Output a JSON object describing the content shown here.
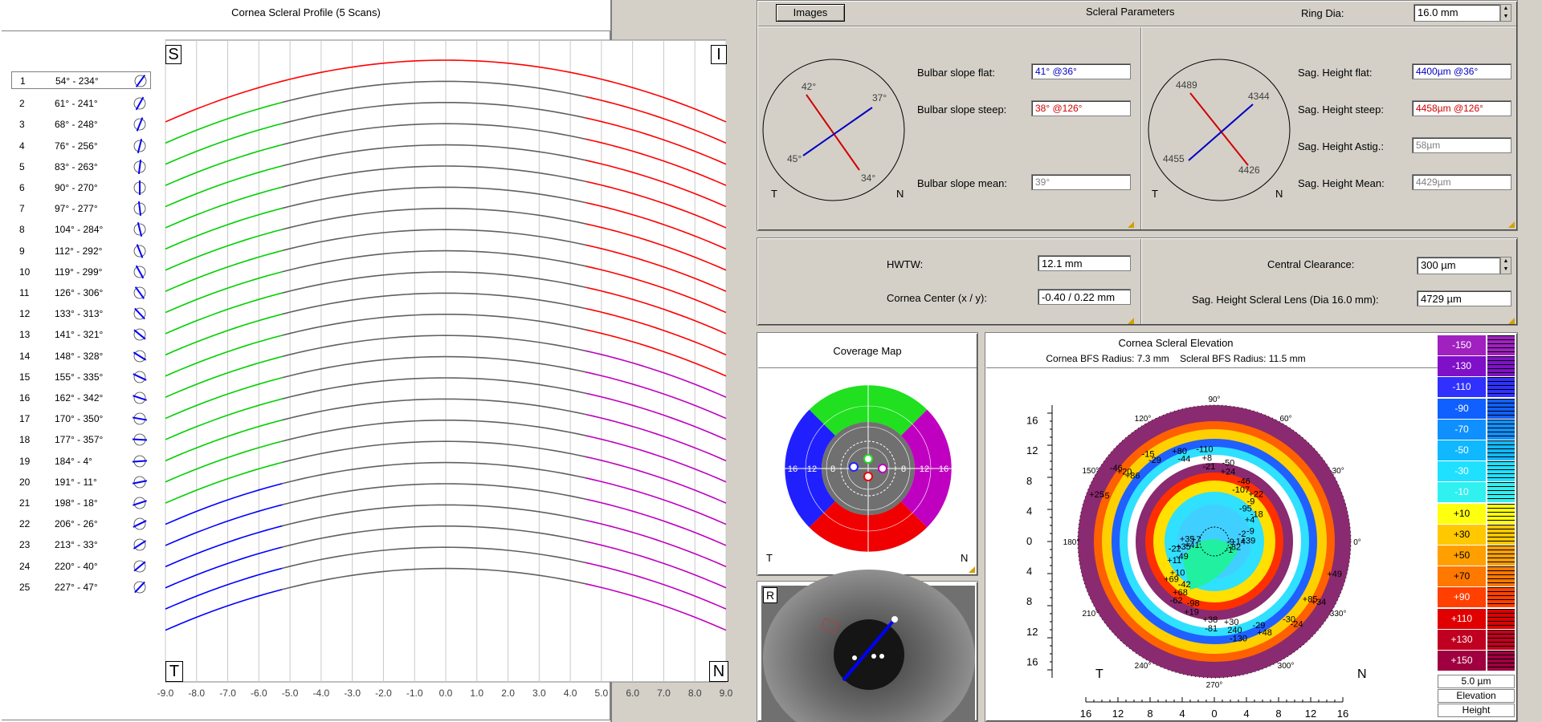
{
  "profile": {
    "title": "Cornea Scleral Profile (5 Scans)",
    "corner_s": "S",
    "corner_i": "I",
    "corner_t": "T",
    "corner_n": "N",
    "xticks": [
      "-9.0",
      "-8.0",
      "-7.0",
      "-6.0",
      "-5.0",
      "-4.0",
      "-3.0",
      "-2.0",
      "-1.0",
      "0.0",
      "1.0",
      "2.0",
      "3.0",
      "4.0",
      "5.0",
      "6.0",
      "7.0",
      "8.0",
      "9.0"
    ],
    "scans": [
      {
        "n": "1",
        "range": "54° - 234°"
      },
      {
        "n": "2",
        "range": "61° - 241°"
      },
      {
        "n": "3",
        "range": "68° - 248°"
      },
      {
        "n": "4",
        "range": "76° - 256°"
      },
      {
        "n": "5",
        "range": "83° - 263°"
      },
      {
        "n": "6",
        "range": "90° - 270°"
      },
      {
        "n": "7",
        "range": "97° - 277°"
      },
      {
        "n": "8",
        "range": "104° - 284°"
      },
      {
        "n": "9",
        "range": "112° - 292°"
      },
      {
        "n": "10",
        "range": "119° - 299°"
      },
      {
        "n": "11",
        "range": "126° - 306°"
      },
      {
        "n": "12",
        "range": "133° - 313°"
      },
      {
        "n": "13",
        "range": "141° - 321°"
      },
      {
        "n": "14",
        "range": "148° - 328°"
      },
      {
        "n": "15",
        "range": "155° - 335°"
      },
      {
        "n": "16",
        "range": "162° - 342°"
      },
      {
        "n": "17",
        "range": "170° - 350°"
      },
      {
        "n": "18",
        "range": "177° - 357°"
      },
      {
        "n": "19",
        "range": "184° - 4°"
      },
      {
        "n": "20",
        "range": "191° - 11°"
      },
      {
        "n": "21",
        "range": "198° - 18°"
      },
      {
        "n": "22",
        "range": "206° - 26°"
      },
      {
        "n": "23",
        "range": "213° - 33°"
      },
      {
        "n": "24",
        "range": "220° - 40°"
      },
      {
        "n": "25",
        "range": "227° - 47°"
      }
    ]
  },
  "scleral": {
    "images_button": "Images",
    "title": "Scleral Parameters",
    "ring_dia_label": "Ring Dia:",
    "ring_dia_value": "16.0 mm",
    "bulbar_flat_label": "Bulbar slope flat:",
    "bulbar_flat_value": "41° @36°",
    "bulbar_steep_label": "Bulbar slope steep:",
    "bulbar_steep_value": "38° @126°",
    "bulbar_mean_label": "Bulbar slope mean:",
    "bulbar_mean_value": "39°",
    "sag_flat_label": "Sag. Height flat:",
    "sag_flat_value": "4400µm @36°",
    "sag_steep_label": "Sag. Height steep:",
    "sag_steep_value": "4458µm @126°",
    "sag_astig_label": "Sag. Height Astig.:",
    "sag_astig_value": "58µm",
    "sag_mean_label": "Sag. Height Mean:",
    "sag_mean_value": "4429µm",
    "slope_diagram": {
      "a1": "42°",
      "a2": "37°",
      "a3": "45°",
      "a4": "34°",
      "t": "T",
      "n": "N"
    },
    "sag_diagram": {
      "a1": "4489",
      "a2": "4344",
      "a3": "4455",
      "a4": "4426",
      "t": "T",
      "n": "N"
    }
  },
  "lens": {
    "hwtw_label": "HWTW:",
    "hwtw_value": "12.1 mm",
    "center_label": "Cornea Center (x / y):",
    "center_value": "-0.40 / 0.22 mm",
    "clearance_label": "Central Clearance:",
    "clearance_value": "300 µm",
    "sag_lens_label": "Sag. Height Scleral Lens  (Dia 16.0 mm):",
    "sag_lens_value": "4729 µm"
  },
  "coverage": {
    "title": "Coverage Map",
    "t": "T",
    "n": "N",
    "rings": [
      "16",
      "12",
      "8",
      "4",
      "4",
      "8",
      "12",
      "16"
    ]
  },
  "eye": {
    "label": "R"
  },
  "elevation": {
    "title": "Cornea Scleral Elevation",
    "subtitle": "Cornea BFS Radius: 7.3 mm    Scleral BFS Radius: 11.5 mm",
    "yticks": [
      "16",
      "12",
      "8",
      "4",
      "0",
      "4",
      "8",
      "12",
      "16"
    ],
    "xticks": [
      "16",
      "12",
      "8",
      "4",
      "0",
      "4",
      "8",
      "12",
      "16"
    ],
    "t": "T",
    "n": "N",
    "deg": [
      "90°",
      "60°",
      "30°",
      "0°",
      "330°",
      "300°",
      "270°",
      "240°",
      "210°",
      "180°",
      "150°",
      "120°"
    ],
    "values": [
      "-9",
      "-95",
      "-21",
      "+86",
      "+41",
      "-42",
      "+30",
      "+85",
      "-2",
      "-107",
      "-44",
      "-5",
      "-49",
      "-98",
      "-29",
      "+49",
      "+4",
      "+24",
      "-29",
      "+7",
      "+10",
      "+38",
      "-30",
      "-14",
      "-9",
      "+8",
      "+20",
      "+35",
      "+68",
      "240",
      "+34",
      "-9",
      "-46",
      "+80",
      "+25",
      "+11",
      "+19",
      "+48",
      "-82",
      "-18",
      "-50",
      "-15",
      "+35",
      "+69",
      "-81",
      "-24",
      "+39",
      "+22",
      "-110",
      "-46",
      "-22",
      "-62",
      "-130",
      "-1"
    ],
    "legend": [
      "-150",
      "-130",
      "-110",
      "-90",
      "-70",
      "-50",
      "-30",
      "-10",
      "+10",
      "+30",
      "+50",
      "+70",
      "+90",
      "+110",
      "+130",
      "+150"
    ],
    "legend_colors": [
      "#a020c0",
      "#8010c8",
      "#3030ff",
      "#1060ff",
      "#1090ff",
      "#10b8ff",
      "#20e0ff",
      "#30f0f0",
      "#ffff10",
      "#ffc800",
      "#ffa000",
      "#ff7800",
      "#ff4000",
      "#e00000",
      "#c00020",
      "#a00040"
    ],
    "step": "5.0 µm",
    "mode1": "Elevation",
    "mode2": "Height"
  },
  "colors": {
    "red": "#ff0000",
    "green": "#00d000",
    "blue": "#0000ff",
    "magenta": "#c000c0",
    "gray": "#606060"
  }
}
